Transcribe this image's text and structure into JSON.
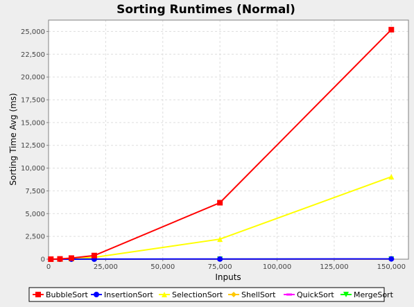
{
  "chart_data": {
    "type": "line",
    "title": "Sorting Runtimes (Normal)",
    "xlabel": "Inputs",
    "ylabel": "Sorting Time Avg (ms)",
    "xlim": [
      0,
      157500
    ],
    "ylim": [
      0,
      26250
    ],
    "x_ticks": [
      0,
      25000,
      50000,
      75000,
      100000,
      125000,
      150000
    ],
    "x_tick_labels": [
      "0",
      "25,000",
      "50,000",
      "75,000",
      "100,000",
      "125,000",
      "150,000"
    ],
    "y_ticks": [
      0,
      2500,
      5000,
      7500,
      10000,
      12500,
      15000,
      17500,
      20000,
      22500,
      25000
    ],
    "y_tick_labels": [
      "0",
      "2,500",
      "5,000",
      "7,500",
      "10,000",
      "12,500",
      "15,000",
      "17,500",
      "20,000",
      "22,500",
      "25,000"
    ],
    "grid": true,
    "legend_position": "bottom",
    "x": [
      1000,
      5000,
      10000,
      20000,
      75000,
      150000
    ],
    "series": [
      {
        "name": "BubbleSort",
        "color": "#ff0000",
        "marker": "square",
        "values": [
          2,
          30,
          120,
          400,
          6200,
          25200
        ]
      },
      {
        "name": "InsertionSort",
        "color": "#0000ff",
        "marker": "circle",
        "values": [
          0,
          1,
          3,
          10,
          20,
          30
        ]
      },
      {
        "name": "SelectionSort",
        "color": "#ffff00",
        "marker": "triangle-up",
        "values": [
          1,
          15,
          50,
          200,
          2200,
          9050
        ]
      },
      {
        "name": "ShellSort",
        "color": "#ffc800",
        "marker": "diamond",
        "values": [
          0,
          0,
          1,
          2,
          5,
          10
        ]
      },
      {
        "name": "QuickSort",
        "color": "#ff00ff",
        "marker": "bar",
        "values": [
          0,
          0,
          1,
          1,
          3,
          6
        ]
      },
      {
        "name": "MergeSort",
        "color": "#00ff00",
        "marker": "triangle-down",
        "values": [
          0,
          0,
          1,
          2,
          4,
          8
        ]
      }
    ]
  }
}
